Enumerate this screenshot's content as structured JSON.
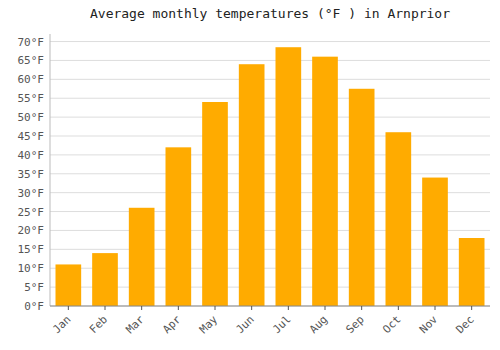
{
  "chart_data": {
    "type": "bar",
    "title": "Average monthly temperatures (°F ) in Arnprior",
    "categories": [
      "Jan",
      "Feb",
      "Mar",
      "Apr",
      "May",
      "Jun",
      "Jul",
      "Aug",
      "Sep",
      "Oct",
      "Nov",
      "Dec"
    ],
    "values": [
      11,
      14,
      26,
      42,
      54,
      64,
      68.5,
      66,
      57.5,
      46,
      34,
      18
    ],
    "color": "#FFAB00",
    "ylim": [
      0,
      72
    ],
    "yticks": [
      {
        "value": 0,
        "label": "0°F"
      },
      {
        "value": 5,
        "label": "5°F"
      },
      {
        "value": 10,
        "label": "10°F"
      },
      {
        "value": 15,
        "label": "15°F"
      },
      {
        "value": 20,
        "label": "20°F"
      },
      {
        "value": 25,
        "label": "25°F"
      },
      {
        "value": 30,
        "label": "30°F"
      },
      {
        "value": 35,
        "label": "35°F"
      },
      {
        "value": 40,
        "label": "40°F"
      },
      {
        "value": 45,
        "label": "45°F"
      },
      {
        "value": 50,
        "label": "50°F"
      },
      {
        "value": 55,
        "label": "55°F"
      },
      {
        "value": 60,
        "label": "60°F"
      },
      {
        "value": 65,
        "label": "65°F"
      },
      {
        "value": 70,
        "label": "70°F"
      }
    ],
    "grid": true
  }
}
